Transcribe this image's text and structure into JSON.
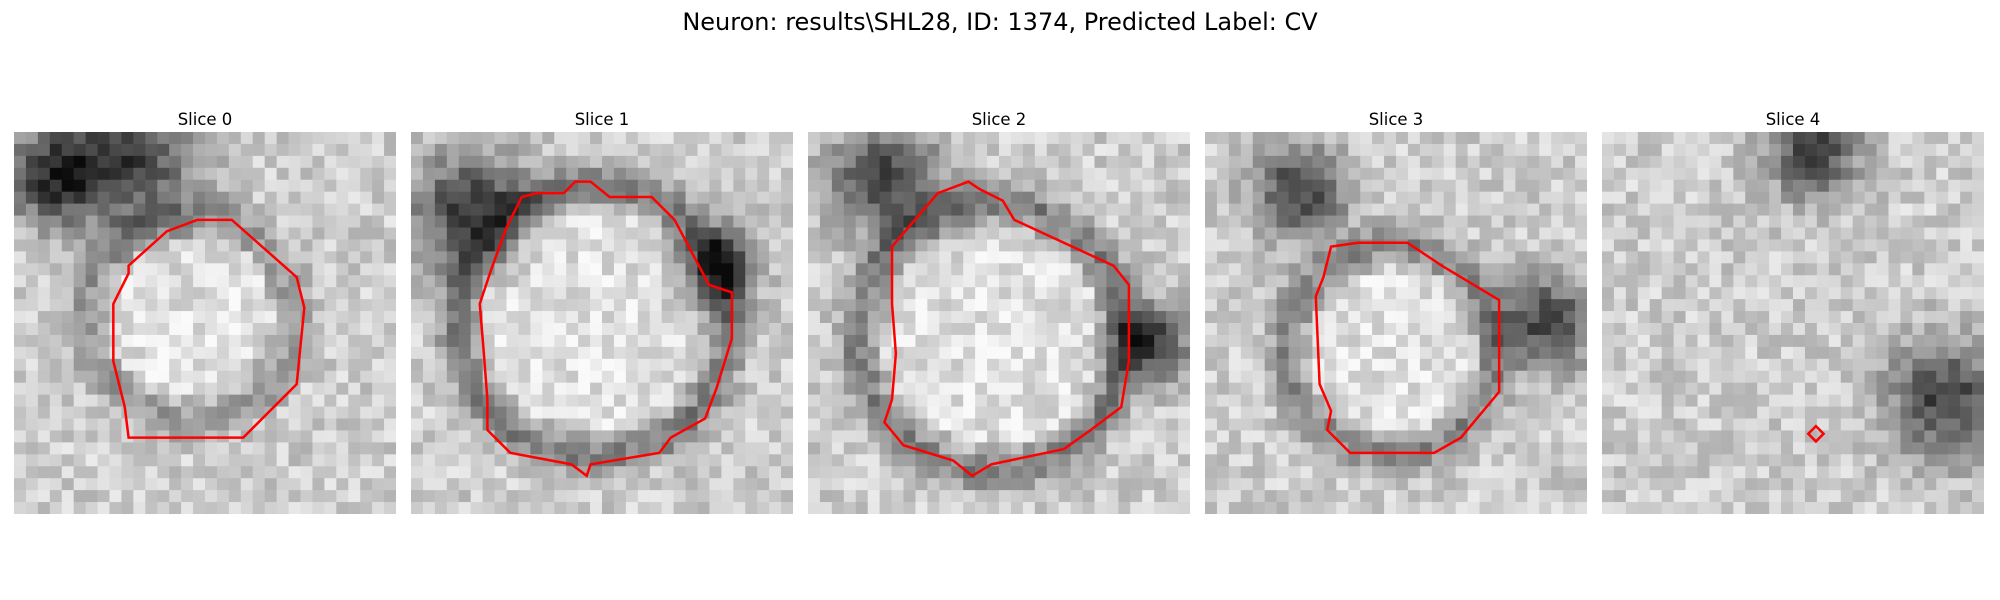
{
  "figure": {
    "title": "Neuron: results\\SHL28, ID: 1374, Predicted Label: CV"
  },
  "colors": {
    "contour": "#ff0000",
    "background": "#ffffff"
  },
  "panels": [
    {
      "title": "Slice 0",
      "seed": 11,
      "ring": 0.55,
      "dark_spots": [
        [
          0.3,
          0.06,
          0.18
        ],
        [
          0.1,
          0.12,
          0.12
        ]
      ],
      "contour": [
        [
          0.48,
          0.23
        ],
        [
          0.57,
          0.23
        ],
        [
          0.74,
          0.38
        ],
        [
          0.76,
          0.46
        ],
        [
          0.74,
          0.66
        ],
        [
          0.6,
          0.8
        ],
        [
          0.3,
          0.8
        ],
        [
          0.29,
          0.72
        ],
        [
          0.26,
          0.6
        ],
        [
          0.26,
          0.45
        ],
        [
          0.3,
          0.37
        ],
        [
          0.3,
          0.35
        ],
        [
          0.4,
          0.26
        ]
      ]
    },
    {
      "title": "Slice 1",
      "seed": 23,
      "ring": 0.85,
      "dark_spots": [
        [
          0.15,
          0.2,
          0.15
        ],
        [
          0.8,
          0.35,
          0.1
        ]
      ],
      "contour": [
        [
          0.43,
          0.13
        ],
        [
          0.47,
          0.13
        ],
        [
          0.52,
          0.17
        ],
        [
          0.63,
          0.17
        ],
        [
          0.69,
          0.23
        ],
        [
          0.78,
          0.4
        ],
        [
          0.84,
          0.42
        ],
        [
          0.84,
          0.54
        ],
        [
          0.8,
          0.67
        ],
        [
          0.77,
          0.75
        ],
        [
          0.68,
          0.8
        ],
        [
          0.65,
          0.84
        ],
        [
          0.47,
          0.87
        ],
        [
          0.46,
          0.9
        ],
        [
          0.42,
          0.87
        ],
        [
          0.26,
          0.84
        ],
        [
          0.2,
          0.78
        ],
        [
          0.2,
          0.7
        ],
        [
          0.19,
          0.57
        ],
        [
          0.18,
          0.45
        ],
        [
          0.21,
          0.36
        ],
        [
          0.25,
          0.25
        ],
        [
          0.29,
          0.17
        ],
        [
          0.33,
          0.16
        ],
        [
          0.4,
          0.16
        ]
      ]
    },
    {
      "title": "Slice 2",
      "seed": 37,
      "ring": 0.85,
      "dark_spots": [
        [
          0.2,
          0.12,
          0.14
        ],
        [
          0.9,
          0.55,
          0.1
        ]
      ],
      "contour": [
        [
          0.34,
          0.16
        ],
        [
          0.42,
          0.13
        ],
        [
          0.45,
          0.15
        ],
        [
          0.51,
          0.18
        ],
        [
          0.54,
          0.23
        ],
        [
          0.8,
          0.35
        ],
        [
          0.84,
          0.4
        ],
        [
          0.84,
          0.6
        ],
        [
          0.82,
          0.72
        ],
        [
          0.74,
          0.78
        ],
        [
          0.67,
          0.83
        ],
        [
          0.48,
          0.87
        ],
        [
          0.43,
          0.9
        ],
        [
          0.38,
          0.86
        ],
        [
          0.25,
          0.82
        ],
        [
          0.2,
          0.76
        ],
        [
          0.22,
          0.7
        ],
        [
          0.23,
          0.58
        ],
        [
          0.22,
          0.45
        ],
        [
          0.22,
          0.3
        ]
      ]
    },
    {
      "title": "Slice 3",
      "seed": 51,
      "ring": 0.75,
      "dark_spots": [
        [
          0.25,
          0.15,
          0.12
        ],
        [
          0.9,
          0.5,
          0.12
        ]
      ],
      "contour": [
        [
          0.33,
          0.3
        ],
        [
          0.4,
          0.29
        ],
        [
          0.53,
          0.29
        ],
        [
          0.62,
          0.35
        ],
        [
          0.77,
          0.44
        ],
        [
          0.77,
          0.68
        ],
        [
          0.72,
          0.74
        ],
        [
          0.67,
          0.8
        ],
        [
          0.6,
          0.84
        ],
        [
          0.38,
          0.84
        ],
        [
          0.32,
          0.78
        ],
        [
          0.33,
          0.73
        ],
        [
          0.3,
          0.66
        ],
        [
          0.29,
          0.43
        ],
        [
          0.31,
          0.38
        ]
      ]
    },
    {
      "title": "Slice 4",
      "seed": 67,
      "ring": 0.0,
      "dark_spots": [
        [
          0.55,
          0.05,
          0.12
        ],
        [
          0.9,
          0.7,
          0.15
        ]
      ],
      "contour": [
        [
          0.56,
          0.77
        ],
        [
          0.58,
          0.79
        ],
        [
          0.56,
          0.81
        ],
        [
          0.54,
          0.79
        ]
      ]
    }
  ]
}
